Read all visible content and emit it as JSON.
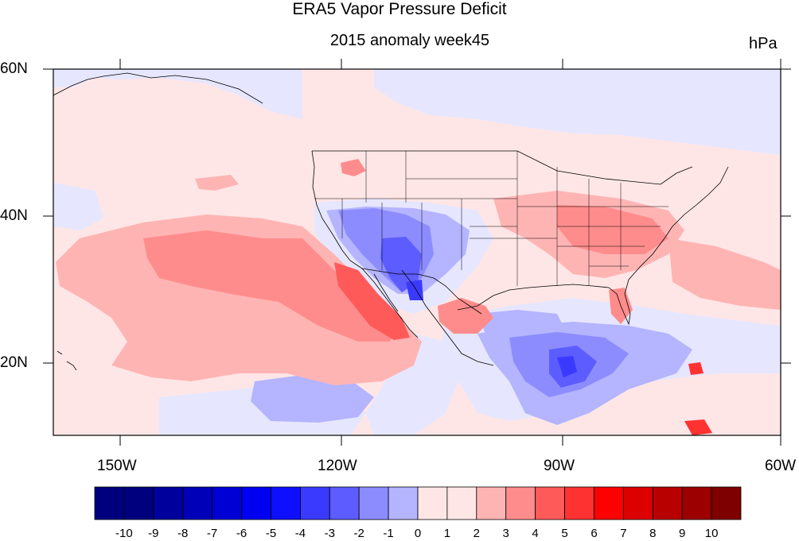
{
  "title": "ERA5 Vapor Pressure Deficit",
  "subtitle": "2015 anomaly week45",
  "units": "hPa",
  "lat_labels": [
    "60N",
    "40N",
    "20N"
  ],
  "lon_labels": [
    "150W",
    "120W",
    "90W",
    "60W"
  ],
  "colorbar": {
    "labels": [
      "-10",
      "-9",
      "-8",
      "-7",
      "-6",
      "-5",
      "-4",
      "-3",
      "-2",
      "-1",
      "0",
      "1",
      "2",
      "3",
      "4",
      "5",
      "6",
      "7",
      "8",
      "9",
      "10"
    ],
    "colors": [
      "#00007f",
      "#00009c",
      "#0000b8",
      "#0000d5",
      "#0000f1",
      "#0f0fff",
      "#3a3aff",
      "#5c5cff",
      "#8c8cff",
      "#b4b4ff",
      "#e2e2ff",
      "#ffe6e6",
      "#ffb4b4",
      "#ff8c8c",
      "#ff5a5a",
      "#ff3232",
      "#ff0000",
      "#dc0000",
      "#b80000",
      "#9c0000",
      "#7f0000"
    ]
  },
  "map": {
    "extent": {
      "lon": [
        -160,
        -60
      ],
      "lat": [
        10,
        60
      ]
    },
    "anomaly_colors": {
      "ocean_base": "#ffe6e6",
      "land_base": "#ffeef0",
      "light_blue": "#e2e2ff",
      "mid_blue": "#b4b4ff",
      "blue": "#8c8cff",
      "strong_blue": "#5c5cff",
      "deep_blue": "#3a3aff",
      "light_red": "#ffb4b4",
      "red": "#ff8c8c",
      "strong_red": "#ff5a5a",
      "deep_red": "#ff3232"
    }
  }
}
